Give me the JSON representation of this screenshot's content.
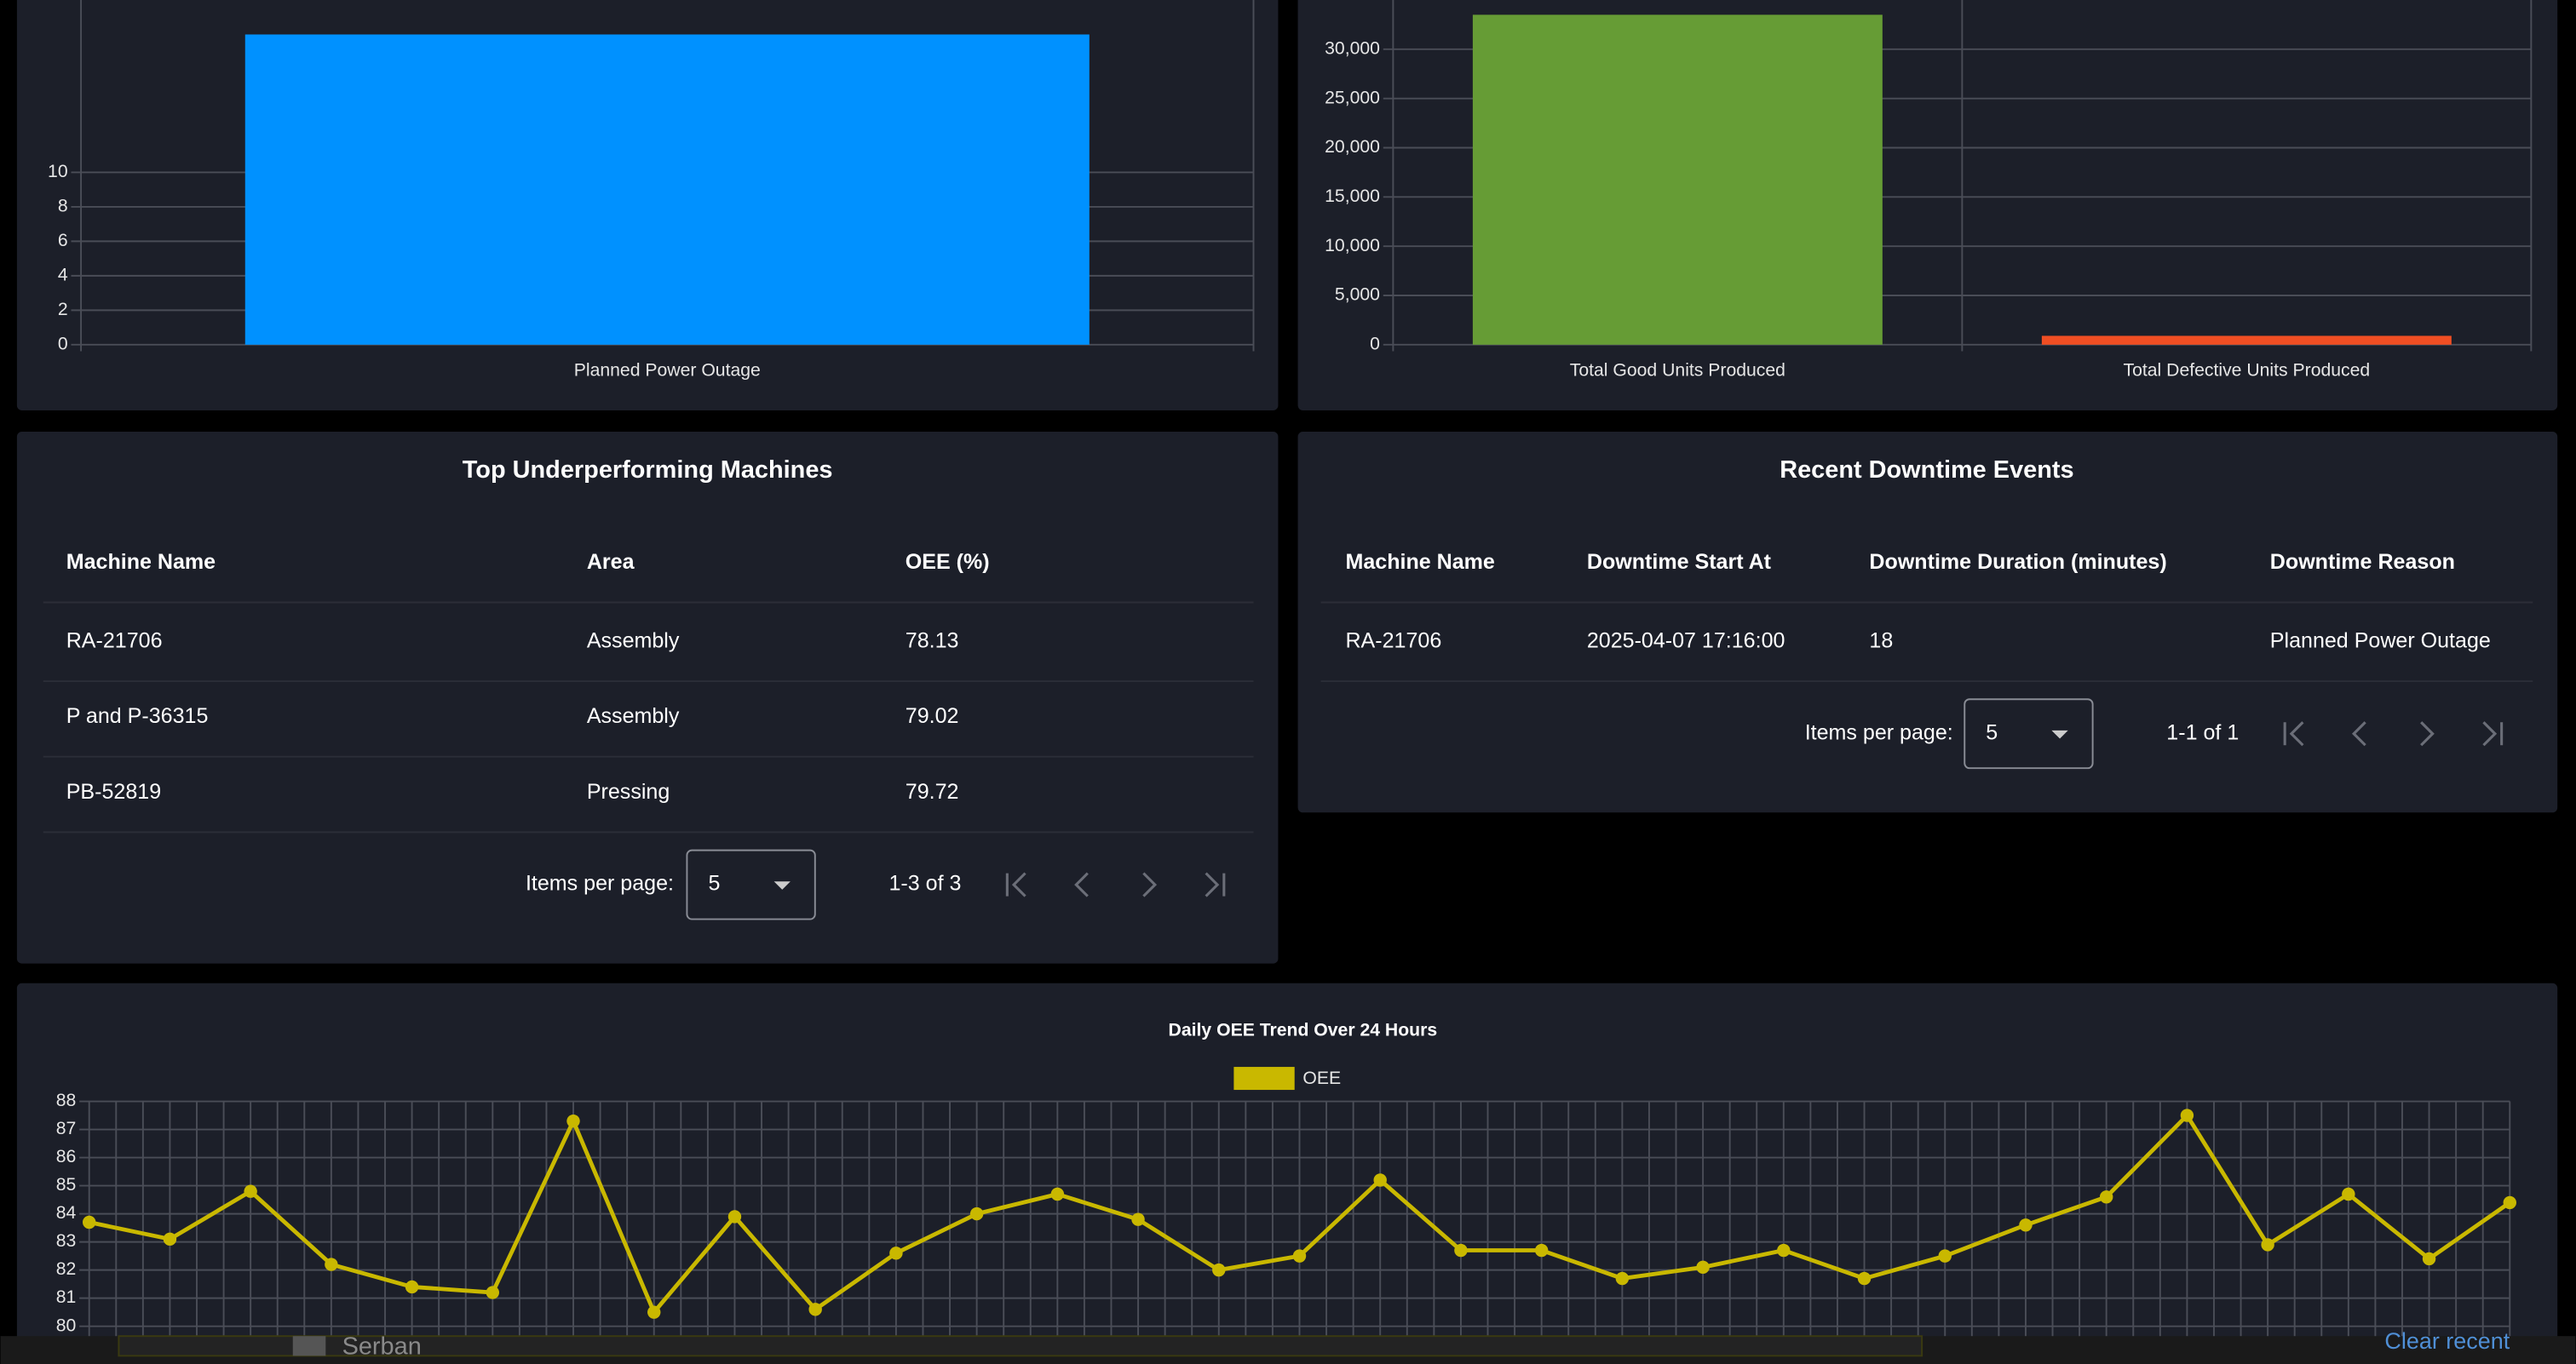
{
  "chart_data": [
    {
      "type": "bar",
      "categories": [
        "Planned Power Outage"
      ],
      "values": [
        18
      ],
      "colors": [
        "#0091ff"
      ],
      "ylim": [
        0,
        20
      ],
      "yticks": [
        0,
        2,
        4,
        6,
        8,
        10
      ],
      "grid": true
    },
    {
      "type": "bar",
      "categories": [
        "Total Good Units Produced",
        "Total Defective Units Produced"
      ],
      "values": [
        33500,
        900
      ],
      "colors": [
        "#669c35",
        "#f04e23"
      ],
      "ylim": [
        0,
        35000
      ],
      "yticks": [
        0,
        {
          "value": 5000,
          "label": "5,000"
        },
        {
          "value": 10000,
          "label": "10,000"
        },
        {
          "value": 15000,
          "label": "15,000"
        },
        {
          "value": 20000,
          "label": "20,000"
        },
        {
          "value": 25000,
          "label": "25,000"
        },
        {
          "value": 30000,
          "label": "30,000"
        }
      ],
      "grid": true
    },
    {
      "type": "line",
      "title": "Daily OEE Trend Over 24 Hours",
      "categories": [
        null,
        null,
        null,
        null,
        null,
        null,
        null,
        null,
        null,
        null,
        null,
        null,
        null,
        null,
        null,
        null,
        null,
        null,
        null,
        null,
        null,
        null,
        null,
        null,
        null,
        null,
        null,
        null,
        null,
        null,
        null
      ],
      "series": [
        {
          "name": "OEE",
          "color": "#c9b800",
          "values": [
            83.7,
            83.1,
            84.8,
            82.2,
            81.4,
            81.2,
            87.3,
            80.5,
            83.9,
            80.6,
            82.6,
            84.0,
            84.7,
            83.8,
            82.0,
            82.5,
            85.2,
            82.7,
            82.7,
            81.7,
            82.1,
            82.7,
            81.7,
            82.5,
            83.6,
            84.6,
            87.5,
            82.9,
            84.7,
            82.4,
            84.4
          ]
        }
      ],
      "ylim": [
        80,
        88
      ],
      "yticks": [
        80,
        81,
        82,
        83,
        84,
        85,
        86,
        87,
        88
      ],
      "grid": true,
      "legend": "top"
    }
  ],
  "tables": [
    {
      "title": "Top Underperforming Machines",
      "columns": [
        "Machine Name",
        "Area",
        "OEE (%)"
      ],
      "rows": [
        [
          "RA-21706",
          "Assembly",
          78.13
        ],
        [
          "P and P-36315",
          "Assembly",
          79.02
        ],
        [
          "PB-52819",
          "Pressing",
          79.72
        ]
      ],
      "paginator": {
        "label": "Items per page:",
        "page_size": 5,
        "range": "1-3 of 3"
      }
    },
    {
      "title": "Recent Downtime Events",
      "columns": [
        "Machine Name",
        "Downtime Start At",
        "Downtime Duration (minutes)",
        "Downtime Reason"
      ],
      "rows": [
        [
          "RA-21706",
          "2025-04-07 17:16:00",
          18,
          "Planned Power Outage"
        ]
      ],
      "paginator": {
        "label": "Items per page:",
        "page_size": 5,
        "range": "1-1 of 1"
      }
    }
  ],
  "taskbar": {
    "user": "Serban",
    "action": "Clear recent"
  }
}
